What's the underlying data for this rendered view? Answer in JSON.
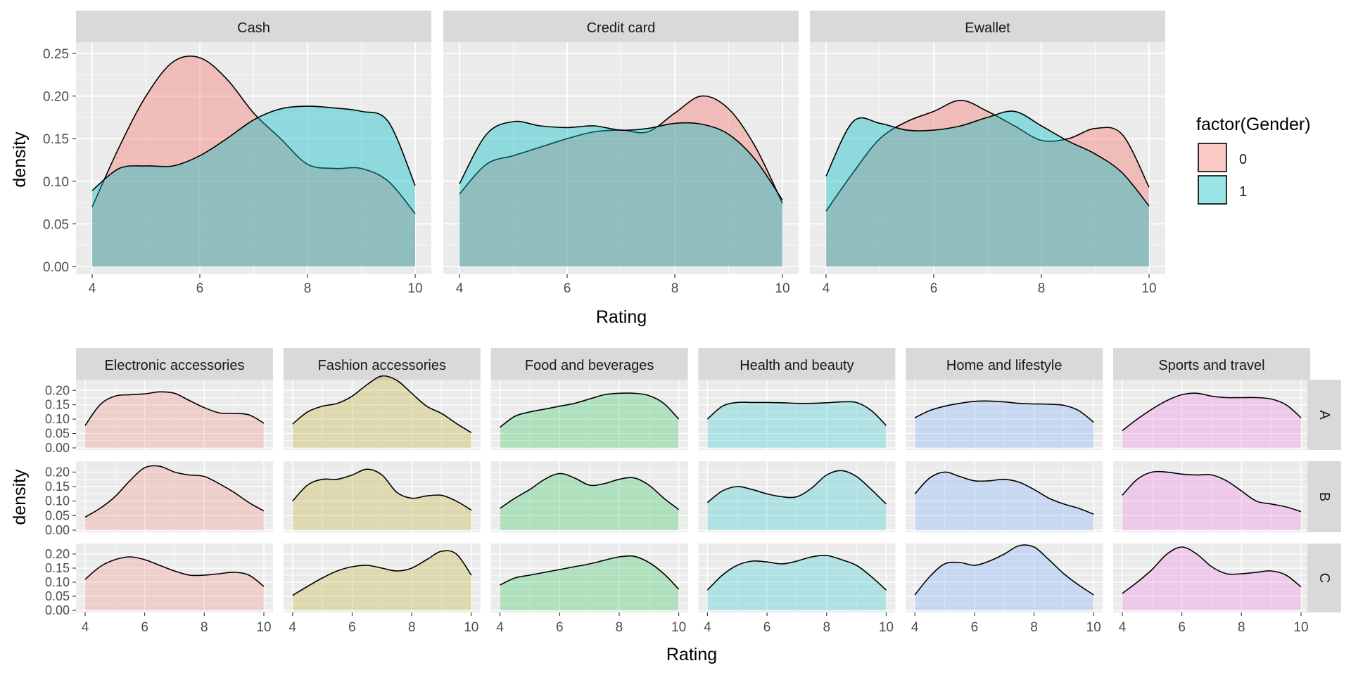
{
  "chart_data": [
    {
      "type": "area",
      "xlabel": "Rating",
      "ylabel": "density",
      "xlim": [
        4,
        10
      ],
      "ylim": [
        0,
        0.25
      ],
      "x_ticks": [
        "4",
        "6",
        "8",
        "10"
      ],
      "y_ticks": [
        "0.00",
        "0.05",
        "0.10",
        "0.15",
        "0.20",
        "0.25"
      ],
      "grid": true,
      "legend": {
        "title": "factor(Gender)",
        "position": "right",
        "entries": [
          {
            "label": "0",
            "color": "#F8766D"
          },
          {
            "label": "1",
            "color": "#00BFC4"
          }
        ]
      },
      "facets": [
        {
          "label": "Cash",
          "series": [
            {
              "name": "0",
              "x": [
                4,
                4.5,
                5,
                5.5,
                6,
                6.5,
                7,
                7.5,
                8,
                8.5,
                9,
                9.5,
                10
              ],
              "y": [
                0.07,
                0.14,
                0.2,
                0.24,
                0.245,
                0.22,
                0.18,
                0.15,
                0.12,
                0.115,
                0.115,
                0.1,
                0.062
              ]
            },
            {
              "name": "1",
              "x": [
                4,
                4.5,
                5,
                5.5,
                6,
                6.5,
                7,
                7.5,
                8,
                8.5,
                9,
                9.5,
                10
              ],
              "y": [
                0.089,
                0.115,
                0.118,
                0.118,
                0.13,
                0.15,
                0.172,
                0.185,
                0.188,
                0.186,
                0.182,
                0.17,
                0.095
              ]
            }
          ]
        },
        {
          "label": "Credit card",
          "series": [
            {
              "name": "0",
              "x": [
                4,
                4.5,
                5,
                5.5,
                6,
                6.5,
                7,
                7.5,
                8,
                8.5,
                9,
                9.5,
                10
              ],
              "y": [
                0.085,
                0.12,
                0.13,
                0.14,
                0.15,
                0.158,
                0.16,
                0.158,
                0.18,
                0.2,
                0.185,
                0.14,
                0.074
              ]
            },
            {
              "name": "1",
              "x": [
                4,
                4.5,
                5,
                5.5,
                6,
                6.5,
                7,
                7.5,
                8,
                8.5,
                9,
                9.5,
                10
              ],
              "y": [
                0.097,
                0.155,
                0.17,
                0.165,
                0.163,
                0.165,
                0.16,
                0.162,
                0.168,
                0.167,
                0.155,
                0.125,
                0.078
              ]
            }
          ]
        },
        {
          "label": "Ewallet",
          "series": [
            {
              "name": "0",
              "x": [
                4,
                4.5,
                5,
                5.5,
                6,
                6.5,
                7,
                7.5,
                8,
                8.5,
                9,
                9.5,
                10
              ],
              "y": [
                0.065,
                0.11,
                0.15,
                0.17,
                0.182,
                0.195,
                0.182,
                0.165,
                0.148,
                0.15,
                0.162,
                0.155,
                0.093
              ]
            },
            {
              "name": "1",
              "x": [
                4,
                4.5,
                5,
                5.5,
                6,
                6.5,
                7,
                7.5,
                8,
                8.5,
                9,
                9.5,
                10
              ],
              "y": [
                0.106,
                0.17,
                0.168,
                0.16,
                0.16,
                0.165,
                0.175,
                0.182,
                0.165,
                0.147,
                0.132,
                0.11,
                0.071
              ]
            }
          ]
        }
      ]
    },
    {
      "type": "area",
      "xlabel": "Rating",
      "ylabel": "density",
      "xlim": [
        4,
        10
      ],
      "ylim": [
        0,
        0.23
      ],
      "x_ticks": [
        "4",
        "6",
        "8",
        "10"
      ],
      "y_ticks": [
        "0.00",
        "0.05",
        "0.10",
        "0.15",
        "0.20"
      ],
      "grid": true,
      "columns": [
        "Electronic accessories",
        "Fashion accessories",
        "Food and beverages",
        "Health and beauty",
        "Home and lifestyle",
        "Sports and travel"
      ],
      "rows": [
        "A",
        "B",
        "C"
      ],
      "colors": [
        "#F8766D",
        "#B79F00",
        "#00BA38",
        "#00BFC4",
        "#619CFF",
        "#F564E3"
      ],
      "x": [
        4,
        4.5,
        5,
        5.5,
        6,
        6.5,
        7,
        7.5,
        8,
        8.5,
        9,
        9.5,
        10
      ],
      "panels": [
        [
          [
            0.078,
            0.15,
            0.18,
            0.185,
            0.188,
            0.195,
            0.19,
            0.165,
            0.14,
            0.122,
            0.12,
            0.115,
            0.086
          ],
          [
            0.083,
            0.125,
            0.145,
            0.155,
            0.18,
            0.22,
            0.25,
            0.235,
            0.19,
            0.145,
            0.12,
            0.085,
            0.053
          ],
          [
            0.072,
            0.11,
            0.125,
            0.135,
            0.145,
            0.155,
            0.17,
            0.185,
            0.19,
            0.19,
            0.182,
            0.155,
            0.1
          ],
          [
            0.1,
            0.145,
            0.158,
            0.158,
            0.158,
            0.157,
            0.155,
            0.155,
            0.157,
            0.16,
            0.158,
            0.13,
            0.078
          ],
          [
            0.105,
            0.13,
            0.145,
            0.155,
            0.162,
            0.163,
            0.16,
            0.155,
            0.153,
            0.152,
            0.148,
            0.13,
            0.089
          ],
          [
            0.06,
            0.1,
            0.135,
            0.165,
            0.185,
            0.19,
            0.18,
            0.175,
            0.175,
            0.175,
            0.17,
            0.15,
            0.105
          ]
        ],
        [
          [
            0.045,
            0.075,
            0.115,
            0.17,
            0.215,
            0.22,
            0.2,
            0.19,
            0.185,
            0.16,
            0.13,
            0.095,
            0.066
          ],
          [
            0.1,
            0.155,
            0.175,
            0.175,
            0.19,
            0.21,
            0.19,
            0.13,
            0.11,
            0.118,
            0.12,
            0.1,
            0.069
          ],
          [
            0.075,
            0.11,
            0.14,
            0.175,
            0.195,
            0.18,
            0.155,
            0.16,
            0.175,
            0.18,
            0.155,
            0.11,
            0.071
          ],
          [
            0.095,
            0.135,
            0.15,
            0.14,
            0.125,
            0.115,
            0.115,
            0.145,
            0.19,
            0.205,
            0.185,
            0.14,
            0.09
          ],
          [
            0.125,
            0.18,
            0.2,
            0.185,
            0.17,
            0.17,
            0.175,
            0.165,
            0.14,
            0.11,
            0.09,
            0.075,
            0.055
          ],
          [
            0.12,
            0.175,
            0.2,
            0.2,
            0.193,
            0.19,
            0.19,
            0.17,
            0.135,
            0.1,
            0.09,
            0.08,
            0.064
          ]
        ],
        [
          [
            0.11,
            0.155,
            0.18,
            0.19,
            0.18,
            0.16,
            0.14,
            0.125,
            0.125,
            0.13,
            0.135,
            0.125,
            0.085
          ],
          [
            0.053,
            0.085,
            0.115,
            0.14,
            0.155,
            0.16,
            0.15,
            0.14,
            0.15,
            0.18,
            0.21,
            0.2,
            0.125
          ],
          [
            0.09,
            0.115,
            0.125,
            0.135,
            0.145,
            0.155,
            0.165,
            0.178,
            0.19,
            0.192,
            0.17,
            0.13,
            0.075
          ],
          [
            0.072,
            0.125,
            0.16,
            0.175,
            0.172,
            0.165,
            0.175,
            0.19,
            0.195,
            0.18,
            0.16,
            0.12,
            0.072
          ],
          [
            0.055,
            0.12,
            0.165,
            0.17,
            0.16,
            0.175,
            0.2,
            0.23,
            0.225,
            0.18,
            0.13,
            0.09,
            0.055
          ],
          [
            0.06,
            0.1,
            0.145,
            0.2,
            0.225,
            0.2,
            0.155,
            0.13,
            0.13,
            0.135,
            0.14,
            0.125,
            0.083
          ]
        ]
      ]
    }
  ]
}
